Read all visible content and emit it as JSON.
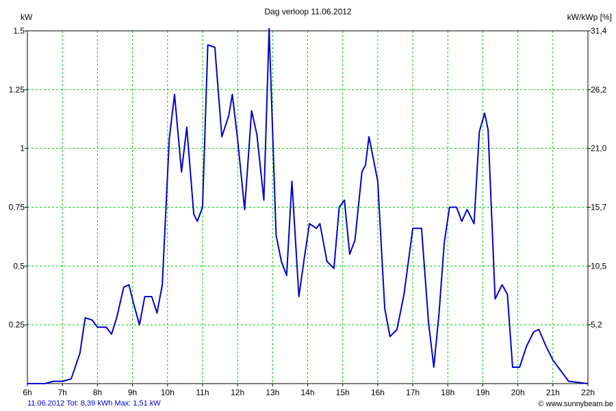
{
  "chart_data": {
    "type": "line",
    "title": "Dag  verloop 11.06.2012",
    "ylabel_left": "kW",
    "ylabel_right": "kW/kWp [%]",
    "xlim": [
      6,
      22
    ],
    "ylim": [
      0,
      1.5
    ],
    "x_tick_labels": [
      "6h",
      "7h",
      "8h",
      "9h",
      "10h",
      "11h",
      "12h",
      "13h",
      "14h",
      "15h",
      "16h",
      "17h",
      "18h",
      "19h",
      "20h",
      "21h",
      "22h"
    ],
    "y_tick_values": [
      0.25,
      0.5,
      0.75,
      1,
      1.25,
      1.5
    ],
    "y_tick_labels": [
      "0.25",
      "0.5",
      "0.75",
      "1",
      "1.25",
      "1.5"
    ],
    "y2_tick_labels": [
      "5,2",
      "10,5",
      "15,7",
      "21,0",
      "26,2",
      "31,4"
    ],
    "grid": true,
    "line_color": "#0000cc",
    "grid_color": "#00cc00",
    "series": [
      {
        "x": [
          6.0,
          6.5,
          6.75,
          7.0,
          7.25,
          7.5,
          7.65,
          7.85,
          8.0,
          8.25,
          8.4,
          8.55,
          8.75,
          8.9,
          9.05,
          9.2,
          9.35,
          9.55,
          9.7,
          9.85,
          10.05,
          10.2,
          10.4,
          10.55,
          10.75,
          10.85,
          11.0,
          11.15,
          11.35,
          11.55,
          11.75,
          11.85,
          12.0,
          12.2,
          12.4,
          12.55,
          12.75,
          12.9,
          13.1,
          13.25,
          13.4,
          13.55,
          13.75,
          13.9,
          14.05,
          14.25,
          14.35,
          14.55,
          14.75,
          14.9,
          15.05,
          15.2,
          15.35,
          15.55,
          15.65,
          15.75,
          16.0,
          16.2,
          16.35,
          16.55,
          16.75,
          17.0,
          17.25,
          17.45,
          17.6,
          17.75,
          17.9,
          18.05,
          18.25,
          18.4,
          18.55,
          18.75,
          18.9,
          19.05,
          19.15,
          19.35,
          19.55,
          19.7,
          19.85,
          20.05,
          20.25,
          20.45,
          20.6,
          20.8,
          21.0,
          21.2,
          21.45,
          22.0
        ],
        "y": [
          0.0,
          0.0,
          0.01,
          0.01,
          0.02,
          0.13,
          0.28,
          0.27,
          0.24,
          0.24,
          0.21,
          0.28,
          0.41,
          0.42,
          0.33,
          0.25,
          0.37,
          0.37,
          0.3,
          0.42,
          1.04,
          1.23,
          0.9,
          1.09,
          0.72,
          0.69,
          0.75,
          1.44,
          1.43,
          1.05,
          1.14,
          1.23,
          1.04,
          0.74,
          1.16,
          1.06,
          0.78,
          1.51,
          0.63,
          0.52,
          0.46,
          0.86,
          0.37,
          0.53,
          0.68,
          0.66,
          0.68,
          0.52,
          0.49,
          0.75,
          0.78,
          0.55,
          0.61,
          0.9,
          0.93,
          1.05,
          0.86,
          0.32,
          0.2,
          0.23,
          0.38,
          0.66,
          0.66,
          0.26,
          0.07,
          0.3,
          0.6,
          0.75,
          0.75,
          0.69,
          0.74,
          0.68,
          1.07,
          1.15,
          1.08,
          0.36,
          0.42,
          0.38,
          0.07,
          0.07,
          0.16,
          0.22,
          0.23,
          0.16,
          0.1,
          0.06,
          0.01,
          0.0
        ]
      }
    ]
  },
  "footer": {
    "left": "11.06.2012 Tot: 8,39 kWh Max: 1,51 kW",
    "right": "© www.sunnybeam.be"
  }
}
